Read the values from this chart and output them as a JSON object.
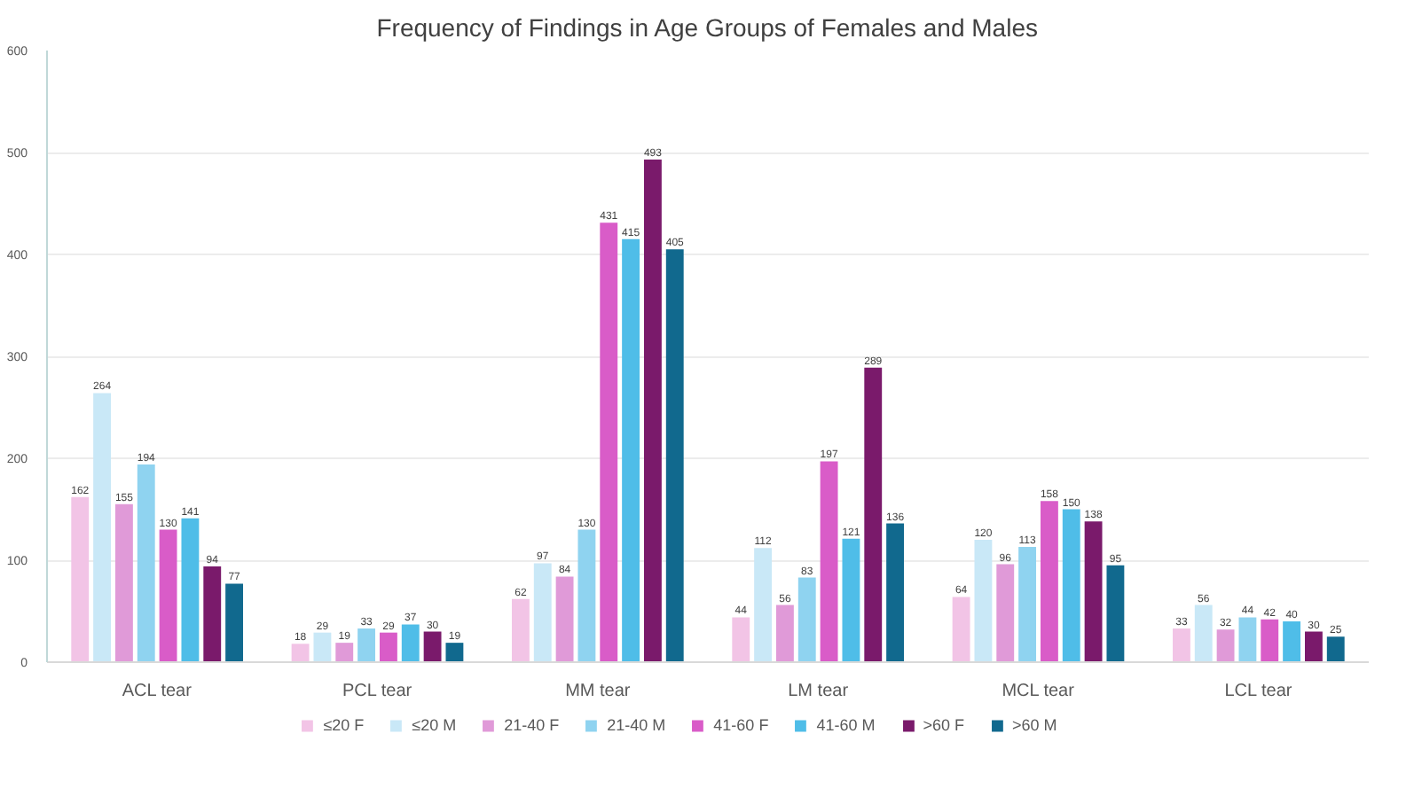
{
  "chart_data": {
    "type": "bar",
    "title": "Frequency of Findings in Age Groups of Females and Males",
    "categories": [
      "ACL tear",
      "PCL tear",
      "MM tear",
      "LM tear",
      "MCL tear",
      "LCL tear"
    ],
    "series": [
      {
        "name": "≤20 F",
        "color": "#f2c4e6",
        "values": [
          162,
          18,
          62,
          44,
          64,
          33
        ]
      },
      {
        "name": "≤20 M",
        "color": "#c9e8f7",
        "values": [
          264,
          29,
          97,
          112,
          120,
          56
        ]
      },
      {
        "name": "21-40 F",
        "color": "#e09ad8",
        "values": [
          155,
          19,
          84,
          56,
          96,
          32
        ]
      },
      {
        "name": "21-40 M",
        "color": "#8fd3f0",
        "values": [
          194,
          33,
          130,
          83,
          113,
          44
        ]
      },
      {
        "name": "41-60 F",
        "color": "#d95cc8",
        "values": [
          130,
          29,
          431,
          197,
          158,
          42
        ]
      },
      {
        "name": "41-60 M",
        "color": "#4fbde8",
        "values": [
          141,
          37,
          415,
          121,
          150,
          40
        ]
      },
      {
        "name": ">60 F",
        "color": "#7a1a6b",
        "values": [
          94,
          30,
          493,
          289,
          138,
          30
        ]
      },
      {
        "name": ">60 M",
        "color": "#11698e",
        "values": [
          77,
          19,
          405,
          136,
          95,
          25
        ]
      }
    ],
    "ylim": [
      0,
      600
    ],
    "yticks": [
      0,
      100,
      200,
      300,
      400,
      500,
      600
    ],
    "grid": "y",
    "legend": "bottom",
    "data_labels": true
  }
}
